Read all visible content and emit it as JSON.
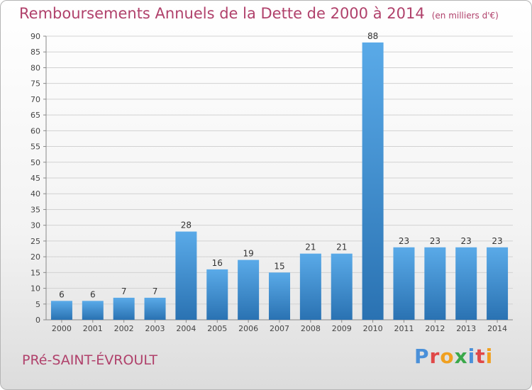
{
  "header": {
    "title": "Remboursements Annuels de la Dette de 2000 à 2014",
    "unit": "(en milliers d'€)"
  },
  "footer": {
    "town": "PRé-SAINT-ÉVROULT",
    "logo_letters": [
      "P",
      "r",
      "o",
      "x",
      "i",
      "t",
      "i"
    ],
    "logo_colors": [
      "#4a90d9",
      "#e04848",
      "#f0a020",
      "#3aa84a",
      "#4a90d9",
      "#e04848",
      "#f0a020"
    ]
  },
  "chart_data": {
    "type": "bar",
    "categories": [
      "2000",
      "2001",
      "2002",
      "2003",
      "2004",
      "2005",
      "2006",
      "2007",
      "2008",
      "2009",
      "2010",
      "2011",
      "2012",
      "2013",
      "2014"
    ],
    "values": [
      6,
      6,
      7,
      7,
      28,
      16,
      19,
      15,
      21,
      21,
      88,
      23,
      23,
      23,
      23
    ],
    "data_labels": [
      "6",
      "6",
      "7",
      "7",
      "28",
      "16",
      "19",
      "15",
      "21",
      "21",
      "88",
      "23",
      "23",
      "23",
      "23"
    ],
    "yticks": [
      0,
      5,
      10,
      15,
      20,
      25,
      30,
      35,
      40,
      45,
      50,
      55,
      60,
      65,
      70,
      75,
      80,
      85,
      90
    ],
    "ylim": [
      0,
      90
    ],
    "grid": true,
    "bar_color_top": "#5aaae8",
    "bar_color_bottom": "#2a72b2"
  }
}
